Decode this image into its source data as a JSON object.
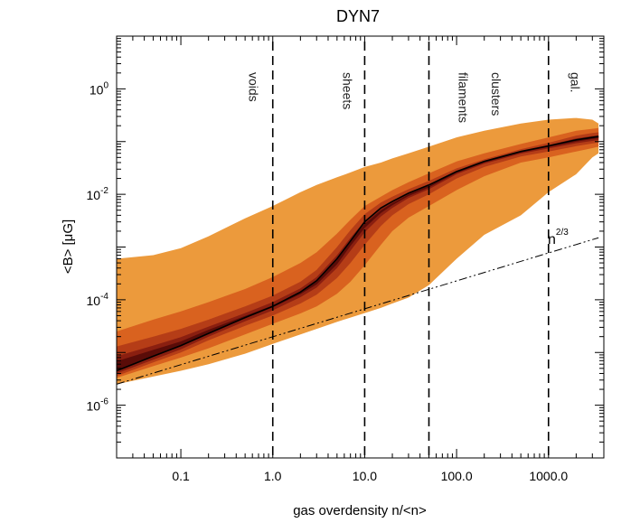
{
  "chart_data": {
    "type": "area",
    "title": "DYN7",
    "xlabel": "gas overdensity n/<n>",
    "ylabel": "<B> [μG]",
    "xscale": "log",
    "yscale": "log",
    "xlim": [
      0.02,
      4000
    ],
    "ylim": [
      1e-07,
      10
    ],
    "xticks": [
      {
        "value": 0.1,
        "label": "0.1"
      },
      {
        "value": 1,
        "label": "1.0"
      },
      {
        "value": 10,
        "label": "10.0"
      },
      {
        "value": 100,
        "label": "100.0"
      },
      {
        "value": 1000,
        "label": "1000.0"
      }
    ],
    "yticks": [
      {
        "value": 1e-06,
        "base": "10",
        "exp": "-6"
      },
      {
        "value": 0.0001,
        "base": "10",
        "exp": "-4"
      },
      {
        "value": 0.01,
        "base": "10",
        "exp": "-2"
      },
      {
        "value": 1,
        "base": "10",
        "exp": "0"
      }
    ],
    "x": [
      0.02,
      0.05,
      0.1,
      0.2,
      0.5,
      1,
      2,
      3,
      5,
      7,
      10,
      15,
      20,
      30,
      50,
      100,
      200,
      500,
      1000,
      2000,
      3000,
      3500
    ],
    "bands": [
      {
        "name": "outer",
        "color": "#ec9a3c",
        "lower": [
          2.5e-06,
          3.5e-06,
          4.5e-06,
          6e-06,
          9.5e-06,
          1.45e-05,
          2.2e-05,
          2.8e-05,
          3.8e-05,
          4.6e-05,
          5.6e-05,
          7e-05,
          8.5e-05,
          0.00011,
          0.00019,
          0.0006,
          0.0017,
          0.004,
          0.011,
          0.024,
          0.05,
          0.06
        ],
        "upper": [
          0.0006,
          0.0007,
          0.00095,
          0.0016,
          0.0035,
          0.006,
          0.011,
          0.015,
          0.021,
          0.026,
          0.033,
          0.04,
          0.048,
          0.06,
          0.08,
          0.12,
          0.16,
          0.22,
          0.26,
          0.28,
          0.26,
          0.22
        ]
      },
      {
        "name": "band-2",
        "color": "#d9621f",
        "lower": [
          3.3e-06,
          5.5e-06,
          8e-06,
          1.2e-05,
          2.2e-05,
          3.5e-05,
          5.5e-05,
          7.5e-05,
          0.00013,
          0.00022,
          0.00045,
          0.0011,
          0.002,
          0.0036,
          0.006,
          0.012,
          0.022,
          0.04,
          0.05,
          0.065,
          0.075,
          0.08
        ],
        "upper": [
          2.5e-05,
          4.2e-05,
          6e-05,
          9e-05,
          0.00016,
          0.00027,
          0.0005,
          0.0008,
          0.0018,
          0.0033,
          0.006,
          0.009,
          0.012,
          0.017,
          0.025,
          0.042,
          0.06,
          0.09,
          0.12,
          0.16,
          0.175,
          0.18
        ]
      },
      {
        "name": "band-3",
        "color": "#b53d17",
        "lower": [
          3.6e-06,
          6.5e-06,
          1e-05,
          1.7e-05,
          3.2e-05,
          5e-05,
          8.5e-05,
          0.000125,
          0.00026,
          0.0005,
          0.0011,
          0.0025,
          0.004,
          0.0065,
          0.01,
          0.02,
          0.033,
          0.052,
          0.065,
          0.082,
          0.092,
          0.096
        ],
        "upper": [
          1.3e-05,
          2e-05,
          2.8e-05,
          4.2e-05,
          7.5e-05,
          0.00012,
          0.00022,
          0.00037,
          0.001,
          0.0021,
          0.0042,
          0.007,
          0.009,
          0.0125,
          0.018,
          0.031,
          0.046,
          0.072,
          0.095,
          0.13,
          0.145,
          0.15
        ]
      },
      {
        "name": "band-4",
        "color": "#8a1f10",
        "lower": [
          4e-06,
          7.3e-06,
          1.15e-05,
          2e-05,
          3.9e-05,
          6.3e-05,
          0.000112,
          0.00017,
          0.0004,
          0.00085,
          0.0019,
          0.0038,
          0.0055,
          0.0085,
          0.0125,
          0.024,
          0.038,
          0.059,
          0.074,
          0.093,
          0.103,
          0.107
        ],
        "upper": [
          8.5e-06,
          1.35e-05,
          1.95e-05,
          3.1e-05,
          5.6e-05,
          9e-05,
          0.000165,
          0.00027,
          0.0007,
          0.0015,
          0.0031,
          0.0056,
          0.0075,
          0.0107,
          0.0155,
          0.0275,
          0.042,
          0.066,
          0.086,
          0.115,
          0.128,
          0.132
        ]
      },
      {
        "name": "band-5",
        "color": "#5a0c08",
        "lower": [
          4.6e-06,
          8.6e-06,
          1.35e-05,
          2.35e-05,
          4.5e-05,
          7.2e-05,
          0.000128,
          0.000195,
          0.00047,
          0.00105,
          0.0023,
          0.0044,
          0.0062,
          0.0093,
          0.0135,
          0.0255,
          0.04,
          0.062,
          0.079,
          0.1,
          0.112,
          0.116
        ],
        "upper": [
          6.8e-06,
          1.12e-05,
          1.62e-05,
          2.7e-05,
          4.95e-05,
          7.8e-05,
          0.000143,
          0.00022,
          0.00057,
          0.0013,
          0.00275,
          0.005,
          0.0068,
          0.01,
          0.0145,
          0.0265,
          0.0405,
          0.065,
          0.083,
          0.107,
          0.12,
          0.124
        ]
      }
    ],
    "median": {
      "name": "median",
      "color": "#000000",
      "y": [
        4.5e-06,
        8.5e-06,
        1.35e-05,
        2.3e-05,
        4.6e-05,
        7.5e-05,
        0.00014,
        0.00023,
        0.0006,
        0.0013,
        0.003,
        0.0055,
        0.0073,
        0.0105,
        0.015,
        0.027,
        0.042,
        0.065,
        0.083,
        0.108,
        0.12,
        0.125
      ]
    },
    "reference_line": {
      "label": "n",
      "label_exp": "2/3",
      "x": [
        0.02,
        3500
      ],
      "y": [
        2.5e-06,
        0.0015
      ],
      "style": "dash-dot-dot"
    },
    "vlines": [
      {
        "x": 1,
        "label": "voids"
      },
      {
        "x": 10,
        "label": "sheets"
      },
      {
        "x": 50,
        "label": "filaments"
      },
      {
        "x": 1000,
        "label": "clusters"
      }
    ],
    "extra_labels": [
      {
        "x": 2000,
        "label": "gal."
      }
    ]
  }
}
